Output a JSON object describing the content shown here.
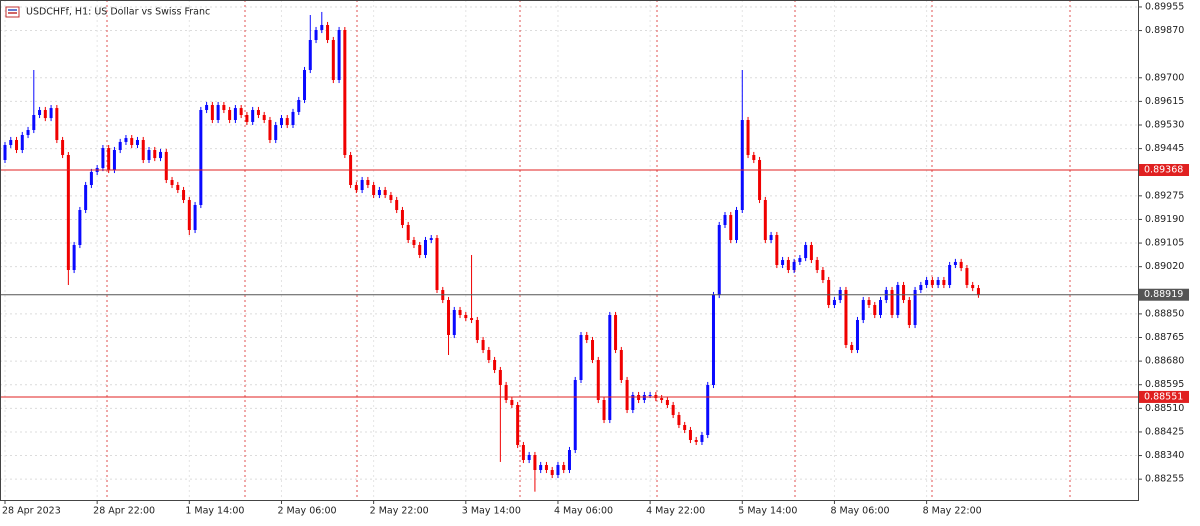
{
  "chart_data": {
    "type": "candlestick",
    "title": "USDCHFf, H1:  US Dollar vs Swiss Franc",
    "up_color": "#0a0aff",
    "down_color": "#f00000",
    "grid": true,
    "categories": [
      "28 Apr 2023",
      null,
      null,
      null,
      null,
      null,
      null,
      null,
      null,
      null,
      null,
      null,
      null,
      null,
      null,
      null,
      "28 Apr 22:00",
      null,
      null,
      null,
      null,
      null,
      null,
      null,
      null,
      null,
      null,
      null,
      null,
      null,
      null,
      null,
      "1 May 14:00",
      null,
      null,
      null,
      null,
      null,
      null,
      null,
      null,
      null,
      null,
      null,
      null,
      null,
      null,
      null,
      "2 May 06:00",
      null,
      null,
      null,
      null,
      null,
      null,
      null,
      null,
      null,
      null,
      null,
      null,
      null,
      null,
      null,
      "2 May 22:00",
      null,
      null,
      null,
      null,
      null,
      null,
      null,
      null,
      null,
      null,
      null,
      null,
      null,
      null,
      null,
      "3 May 14:00",
      null,
      null,
      null,
      null,
      null,
      null,
      null,
      null,
      null,
      null,
      null,
      null,
      null,
      null,
      null,
      "4 May 06:00",
      null,
      null,
      null,
      null,
      null,
      null,
      null,
      null,
      null,
      null,
      null,
      null,
      null,
      null,
      null,
      "4 May 22:00",
      null,
      null,
      null,
      null,
      null,
      null,
      null,
      null,
      null,
      null,
      null,
      null,
      null,
      null,
      null,
      "5 May 14:00",
      null,
      null,
      null,
      null,
      null,
      null,
      null,
      null,
      null,
      null,
      null,
      null,
      null,
      null,
      null,
      "8 May 06:00",
      null,
      null,
      null,
      null,
      null,
      null,
      null,
      null,
      null,
      null,
      null,
      null,
      null,
      null,
      null,
      "8 May 22:00",
      null,
      null,
      null,
      null,
      null,
      null,
      null,
      null,
      null
    ],
    "open": [
      0.89404,
      0.89458,
      0.89476,
      0.8944,
      0.89494,
      0.89512,
      0.89566,
      0.89584,
      0.89555,
      0.89591,
      0.89476,
      0.89422,
      0.89008,
      0.89098,
      0.89224,
      0.89314,
      0.89361,
      0.89375,
      0.89447,
      0.89368,
      0.8944,
      0.89469,
      0.89483,
      0.89458,
      0.89476,
      0.89404,
      0.8944,
      0.89411,
      0.89433,
      0.89332,
      0.89314,
      0.89296,
      0.8926,
      0.89152,
      0.89242,
      0.89584,
      0.89602,
      0.89548,
      0.89602,
      0.89584,
      0.89548,
      0.89591,
      0.89566,
      0.89541,
      0.89584,
      0.89566,
      0.89548,
      0.89476,
      0.8953,
      0.89555,
      0.8953,
      0.89577,
      0.8962,
      0.89728,
      0.89836,
      0.89872,
      0.8989,
      0.89836,
      0.89692,
      0.89872,
      0.89422,
      0.89314,
      0.89296,
      0.89332,
      0.89314,
      0.89278,
      0.89296,
      0.89278,
      0.8926,
      0.89224,
      0.8917,
      0.89116,
      0.89098,
      0.89062,
      0.89116,
      0.89123,
      0.88936,
      0.889,
      0.88774,
      0.88864,
      0.88846,
      0.88835,
      0.88828,
      0.88756,
      0.8872,
      0.88684,
      0.88648,
      0.88594,
      0.8854,
      0.88522,
      0.88378,
      0.88324,
      0.88342,
      0.88288,
      0.88306,
      0.88288,
      0.8827,
      0.88306,
      0.88288,
      0.8836,
      0.88612,
      0.88774,
      0.88756,
      0.88684,
      0.8854,
      0.88468,
      0.88846,
      0.8872,
      0.88612,
      0.88504,
      0.88558,
      0.8854,
      0.88558,
      0.88558,
      0.88547,
      0.8854,
      0.88522,
      0.88486,
      0.8845,
      0.88432,
      0.88396,
      0.88389,
      0.88414,
      0.88594,
      0.88918,
      0.8917,
      0.89206,
      0.89116,
      0.89224,
      0.89548,
      0.89422,
      0.89404,
      0.8926,
      0.89116,
      0.89134,
      0.89026,
      0.89044,
      0.89008,
      0.89037,
      0.89051,
      0.89098,
      0.89044,
      0.89008,
      0.88972,
      0.88882,
      0.889,
      0.88936,
      0.88738,
      0.8872,
      0.88828,
      0.889,
      0.88882,
      0.88846,
      0.889,
      0.88936,
      0.88846,
      0.88954,
      0.889,
      0.8881,
      0.88936,
      0.88954,
      0.88972,
      0.88954,
      0.88972,
      0.88954,
      0.89026,
      0.89037,
      0.89015,
      0.88954,
      0.88943
    ],
    "high": [
      0.89469,
      0.89487,
      0.89487,
      0.89505,
      0.89523,
      0.89728,
      0.89595,
      0.89595,
      0.89602,
      0.89602,
      0.89487,
      0.89433,
      0.89109,
      0.89235,
      0.89325,
      0.89372,
      0.89386,
      0.89458,
      0.89458,
      0.89451,
      0.8948,
      0.89494,
      0.89494,
      0.89487,
      0.89487,
      0.89451,
      0.89451,
      0.89444,
      0.89444,
      0.89343,
      0.89325,
      0.89307,
      0.89271,
      0.89253,
      0.89595,
      0.89613,
      0.89613,
      0.89613,
      0.89613,
      0.89595,
      0.89602,
      0.89602,
      0.89577,
      0.89595,
      0.89595,
      0.89577,
      0.89559,
      0.89541,
      0.89566,
      0.89566,
      0.89588,
      0.89631,
      0.89739,
      0.89926,
      0.89883,
      0.89937,
      0.89901,
      0.89847,
      0.89883,
      0.89883,
      0.89433,
      0.89325,
      0.89343,
      0.89343,
      0.89325,
      0.89307,
      0.89307,
      0.89289,
      0.89271,
      0.89235,
      0.89181,
      0.89127,
      0.89109,
      0.89127,
      0.89134,
      0.89134,
      0.88947,
      0.88911,
      0.88875,
      0.88875,
      0.88857,
      0.89062,
      0.88839,
      0.88767,
      0.88731,
      0.88695,
      0.88659,
      0.88605,
      0.88551,
      0.88533,
      0.88389,
      0.88353,
      0.88353,
      0.88317,
      0.88317,
      0.88299,
      0.88317,
      0.88317,
      0.88371,
      0.88623,
      0.88785,
      0.88785,
      0.88767,
      0.88695,
      0.88551,
      0.88857,
      0.88857,
      0.88731,
      0.88623,
      0.88569,
      0.88569,
      0.88569,
      0.88569,
      0.88569,
      0.88558,
      0.88551,
      0.88533,
      0.88497,
      0.88461,
      0.88443,
      0.88407,
      0.88425,
      0.88605,
      0.88929,
      0.89181,
      0.89217,
      0.89217,
      0.89235,
      0.89728,
      0.89559,
      0.89433,
      0.89415,
      0.89271,
      0.89145,
      0.89145,
      0.89055,
      0.89055,
      0.89048,
      0.89062,
      0.89109,
      0.89109,
      0.89055,
      0.89019,
      0.88983,
      0.88911,
      0.88947,
      0.88947,
      0.88749,
      0.88839,
      0.88911,
      0.88911,
      0.88893,
      0.88911,
      0.88947,
      0.88947,
      0.88965,
      0.88965,
      0.88911,
      0.88947,
      0.88965,
      0.88983,
      0.88983,
      0.88983,
      0.88983,
      0.89037,
      0.89048,
      0.89048,
      0.89026,
      0.88965,
      0.88954
    ],
    "low": [
      0.89393,
      0.89447,
      0.89429,
      0.89429,
      0.89483,
      0.89501,
      0.89555,
      0.89544,
      0.89544,
      0.89465,
      0.89411,
      0.88954,
      0.88997,
      0.89087,
      0.89213,
      0.89303,
      0.8935,
      0.89364,
      0.89357,
      0.89357,
      0.89429,
      0.89458,
      0.89447,
      0.89447,
      0.89393,
      0.89393,
      0.894,
      0.894,
      0.89321,
      0.89303,
      0.89285,
      0.89249,
      0.89134,
      0.89141,
      0.89231,
      0.89573,
      0.89537,
      0.89537,
      0.89573,
      0.89537,
      0.89537,
      0.89555,
      0.8953,
      0.8953,
      0.89555,
      0.89537,
      0.89465,
      0.89465,
      0.89519,
      0.89519,
      0.89519,
      0.89566,
      0.89609,
      0.89717,
      0.89825,
      0.89861,
      0.89825,
      0.89681,
      0.89681,
      0.89411,
      0.89303,
      0.89285,
      0.89285,
      0.89303,
      0.89267,
      0.89267,
      0.89267,
      0.89249,
      0.89213,
      0.89159,
      0.89105,
      0.89087,
      0.89051,
      0.89051,
      0.89105,
      0.88925,
      0.88889,
      0.88702,
      0.88763,
      0.88835,
      0.88824,
      0.88817,
      0.88745,
      0.88709,
      0.88673,
      0.88637,
      0.88317,
      0.88529,
      0.88511,
      0.88367,
      0.88313,
      0.88313,
      0.8821,
      0.88277,
      0.88277,
      0.88259,
      0.88259,
      0.88277,
      0.88277,
      0.88349,
      0.88601,
      0.88745,
      0.88673,
      0.88529,
      0.88457,
      0.88457,
      0.88709,
      0.88601,
      0.88493,
      0.88493,
      0.88529,
      0.88529,
      0.88547,
      0.88536,
      0.88529,
      0.88511,
      0.88475,
      0.88439,
      0.88421,
      0.88385,
      0.88378,
      0.88378,
      0.88403,
      0.88583,
      0.88907,
      0.89159,
      0.89105,
      0.89105,
      0.89213,
      0.89411,
      0.89393,
      0.89249,
      0.89105,
      0.89105,
      0.89015,
      0.89015,
      0.88997,
      0.88997,
      0.89026,
      0.8904,
      0.89033,
      0.88997,
      0.88961,
      0.88871,
      0.88871,
      0.88889,
      0.88727,
      0.88709,
      0.88709,
      0.88817,
      0.88871,
      0.88835,
      0.88835,
      0.88889,
      0.88835,
      0.88835,
      0.88889,
      0.88799,
      0.88799,
      0.88925,
      0.88943,
      0.88943,
      0.88943,
      0.88943,
      0.88943,
      0.89015,
      0.89004,
      0.88943,
      0.88932,
      0.88908
    ],
    "close": [
      0.89458,
      0.89476,
      0.8944,
      0.89494,
      0.89512,
      0.89566,
      0.89584,
      0.89555,
      0.89591,
      0.89476,
      0.89422,
      0.89008,
      0.89098,
      0.89224,
      0.89314,
      0.89361,
      0.89375,
      0.89447,
      0.89368,
      0.8944,
      0.89469,
      0.89483,
      0.89458,
      0.89476,
      0.89404,
      0.8944,
      0.89411,
      0.89433,
      0.89332,
      0.89314,
      0.89296,
      0.8926,
      0.89152,
      0.89242,
      0.89584,
      0.89602,
      0.89548,
      0.89602,
      0.89584,
      0.89548,
      0.89591,
      0.89566,
      0.89541,
      0.89584,
      0.89566,
      0.89548,
      0.89476,
      0.8953,
      0.89555,
      0.8953,
      0.89577,
      0.8962,
      0.89728,
      0.89836,
      0.89872,
      0.8989,
      0.89836,
      0.89692,
      0.89872,
      0.89422,
      0.89314,
      0.89296,
      0.89332,
      0.89314,
      0.89278,
      0.89296,
      0.89278,
      0.8926,
      0.89224,
      0.8917,
      0.89116,
      0.89098,
      0.89062,
      0.89116,
      0.89123,
      0.88936,
      0.889,
      0.88774,
      0.88864,
      0.88846,
      0.88835,
      0.88828,
      0.88756,
      0.8872,
      0.88684,
      0.88648,
      0.88594,
      0.8854,
      0.88522,
      0.88378,
      0.88324,
      0.88342,
      0.88288,
      0.88306,
      0.88288,
      0.8827,
      0.88306,
      0.88288,
      0.8836,
      0.88612,
      0.88774,
      0.88756,
      0.88684,
      0.8854,
      0.88468,
      0.88846,
      0.8872,
      0.88612,
      0.88504,
      0.88558,
      0.8854,
      0.88558,
      0.88558,
      0.88547,
      0.8854,
      0.88522,
      0.88486,
      0.8845,
      0.88432,
      0.88396,
      0.88389,
      0.88414,
      0.88594,
      0.88918,
      0.8917,
      0.89206,
      0.89116,
      0.89224,
      0.89548,
      0.89422,
      0.89404,
      0.8926,
      0.89116,
      0.89134,
      0.89026,
      0.89044,
      0.89008,
      0.89037,
      0.89051,
      0.89098,
      0.89044,
      0.89008,
      0.88972,
      0.88882,
      0.889,
      0.88936,
      0.88738,
      0.8872,
      0.88828,
      0.889,
      0.88882,
      0.88846,
      0.889,
      0.88936,
      0.88846,
      0.88954,
      0.889,
      0.8881,
      0.88936,
      0.88954,
      0.88972,
      0.88954,
      0.88972,
      0.88954,
      0.89026,
      0.89037,
      0.89015,
      0.88954,
      0.88943,
      0.88919
    ],
    "ylim": [
      0.8818,
      0.8998
    ],
    "yticks": [
      0.89955,
      {
        "value": 0.8987,
        "label": "0.89870"
      },
      {
        "value": 0.897,
        "label": "0.89700"
      },
      0.89615,
      {
        "value": 0.8953,
        "label": "0.89530"
      },
      0.89445,
      0.89275,
      {
        "value": 0.8919,
        "label": "0.89190"
      },
      0.89105,
      {
        "value": 0.8902,
        "label": "0.89020"
      },
      {
        "value": 0.8885,
        "label": "0.88850"
      },
      0.88765,
      {
        "value": 0.8868,
        "label": "0.88680"
      },
      0.88595,
      {
        "value": 0.8851,
        "label": "0.88510"
      },
      0.88425,
      {
        "value": 0.8834,
        "label": "0.88340"
      },
      0.88255
    ],
    "hlines": [
      {
        "value": 0.89368,
        "color": "#e02020"
      },
      {
        "value": 0.88919,
        "color": "#555555"
      },
      {
        "value": 0.88551,
        "color": "#e02020"
      }
    ]
  }
}
